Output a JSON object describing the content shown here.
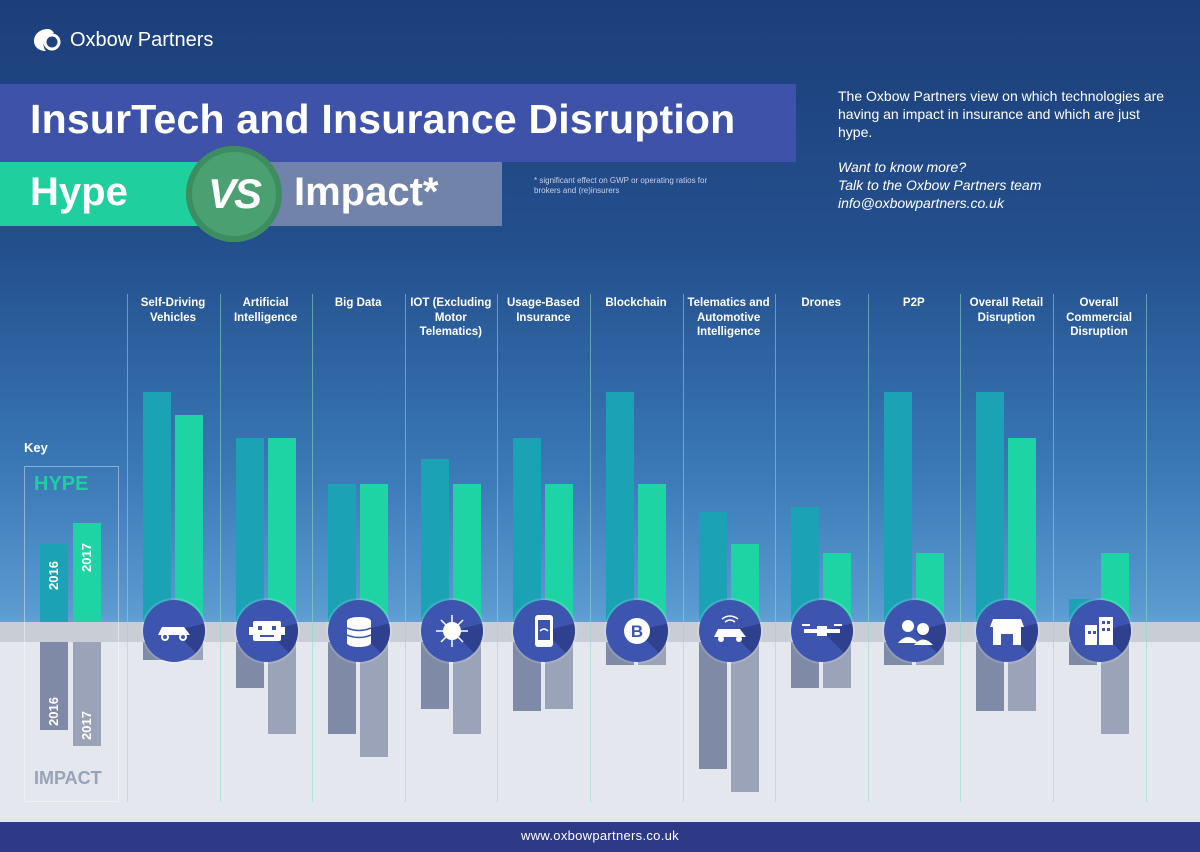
{
  "brand": {
    "name": "Oxbow Partners",
    "footer_url": "www.oxbowpartners.co.uk"
  },
  "header": {
    "title": "InsurTech and Insurance Disruption",
    "hype": "Hype",
    "vs": "VS",
    "impact": "Impact*",
    "footnote": "* significant effect on GWP or operating ratios for brokers and (re)insurers"
  },
  "intro": {
    "text": "The Oxbow Partners view on which technologies are having an impact in insurance and which are just hype.",
    "cta_line1": "Want to know more?",
    "cta_line2": "Talk to the Oxbow Partners team",
    "email": "info@oxbowpartners.co.uk"
  },
  "key": {
    "label": "Key",
    "hype": "HYPE",
    "impact": "IMPACT",
    "year1": "2016",
    "year2": "2017"
  },
  "colors": {
    "hype_2016": "#1ba3b5",
    "hype_2017": "#1fd4a4",
    "impact_2016": "#7f8aa6",
    "impact_2017": "#9aa3b8",
    "icon_circle": "#3e55b0"
  },
  "chart_data": {
    "type": "bar",
    "categories": [
      "Self-Driving Vehicles",
      "Artificial Intelligence",
      "Big Data",
      "IOT (Excluding Motor Telematics)",
      "Usage-Based Insurance",
      "Blockchain",
      "Telematics and Automotive Intelligence",
      "Drones",
      "P2P",
      "Overall Retail Disruption",
      "Overall Commercial Disruption"
    ],
    "icons": [
      "car-icon",
      "robot-icon",
      "database-icon",
      "iot-network-icon",
      "phone-wifi-icon",
      "bitcoin-icon",
      "connected-car-icon",
      "drone-icon",
      "p2p-people-icon",
      "retail-store-icon",
      "commercial-buildings-icon"
    ],
    "series": [
      {
        "name": "HYPE 2016",
        "values": [
          5.0,
          4.0,
          3.0,
          3.55,
          4.0,
          5.0,
          2.4,
          2.5,
          5.0,
          5.0,
          0.5
        ]
      },
      {
        "name": "HYPE 2017",
        "values": [
          4.5,
          4.0,
          3.0,
          3.0,
          3.0,
          3.0,
          1.7,
          1.5,
          1.5,
          4.0,
          1.5
        ]
      },
      {
        "name": "IMPACT 2016",
        "values": [
          0.4,
          1.0,
          2.0,
          1.45,
          1.5,
          0.5,
          2.75,
          1.0,
          0.5,
          1.5,
          0.5
        ]
      },
      {
        "name": "IMPACT 2017",
        "values": [
          0.4,
          2.0,
          2.5,
          2.0,
          1.45,
          0.5,
          3.25,
          1.0,
          0.5,
          1.5,
          2.0
        ]
      }
    ]
  }
}
